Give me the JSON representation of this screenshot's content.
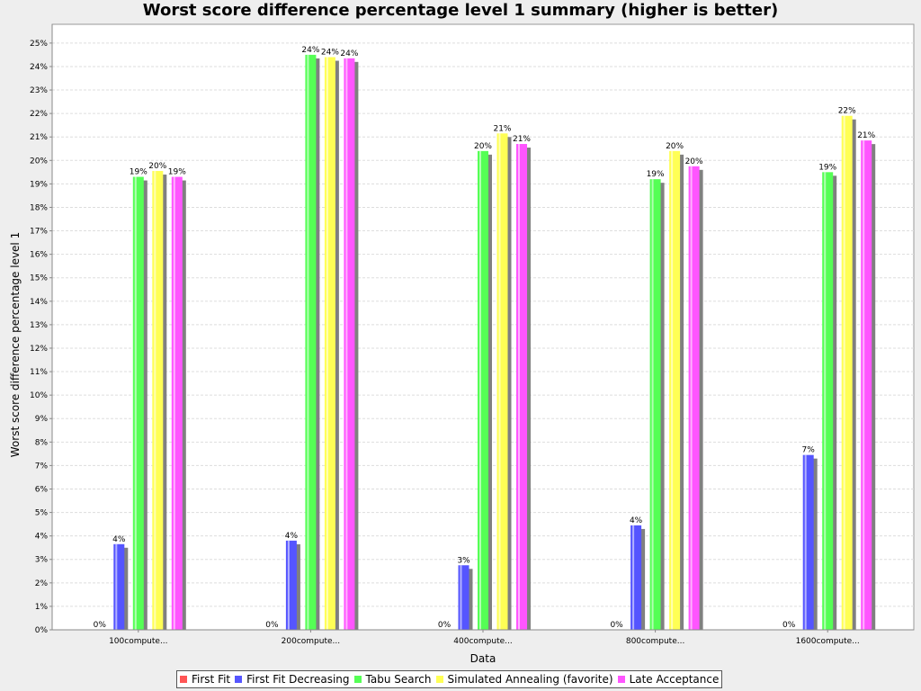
{
  "chart_data": {
    "type": "bar",
    "title": "Worst score difference percentage level 1 summary (higher is better)",
    "xlabel": "Data",
    "ylabel": "Worst score difference percentage level 1",
    "ylim": [
      0,
      25.8
    ],
    "yticks": [
      "0%",
      "1%",
      "2%",
      "3%",
      "4%",
      "5%",
      "6%",
      "7%",
      "8%",
      "9%",
      "10%",
      "11%",
      "12%",
      "13%",
      "14%",
      "15%",
      "16%",
      "17%",
      "18%",
      "19%",
      "20%",
      "21%",
      "22%",
      "23%",
      "24%",
      "25%"
    ],
    "grid": true,
    "legend_position": "bottom",
    "categories": [
      "100compute...",
      "200compute...",
      "400compute...",
      "800compute...",
      "1600compute..."
    ],
    "series": [
      {
        "name": "First Fit",
        "color": "#ff5555",
        "values": [
          0,
          0,
          0,
          0,
          0
        ],
        "labels": [
          "0%",
          "0%",
          "0%",
          "0%",
          "0%"
        ]
      },
      {
        "name": "First Fit Decreasing",
        "color": "#5555ff",
        "values": [
          3.65,
          3.8,
          2.75,
          4.45,
          7.45
        ],
        "labels": [
          "4%",
          "4%",
          "3%",
          "4%",
          "7%"
        ]
      },
      {
        "name": "Tabu Search",
        "color": "#55ff55",
        "values": [
          19.3,
          24.5,
          20.4,
          19.2,
          19.5
        ],
        "labels": [
          "19%",
          "24%",
          "20%",
          "19%",
          "19%"
        ]
      },
      {
        "name": "Simulated Annealing (favorite)",
        "color": "#ffff55",
        "values": [
          19.55,
          24.4,
          21.15,
          20.4,
          21.9
        ],
        "labels": [
          "20%",
          "24%",
          "21%",
          "20%",
          "22%"
        ]
      },
      {
        "name": "Late Acceptance",
        "color": "#ff55ff",
        "values": [
          19.3,
          24.35,
          20.7,
          19.75,
          20.85
        ],
        "labels": [
          "19%",
          "24%",
          "21%",
          "20%",
          "21%"
        ]
      }
    ]
  }
}
